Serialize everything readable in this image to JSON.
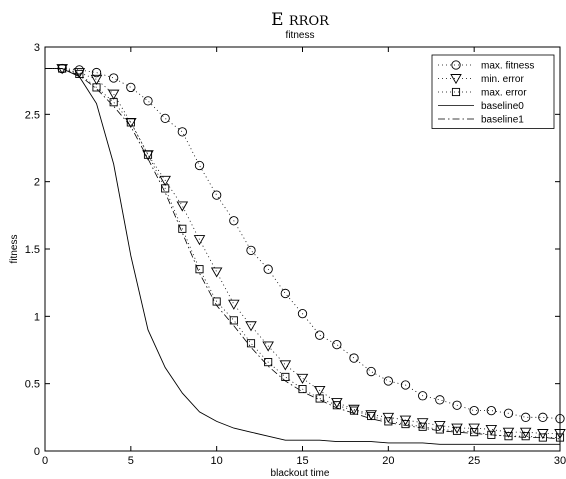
{
  "chart_data": {
    "type": "line",
    "title": "Error",
    "subtitle": "fitness",
    "xlabel": "blackout time",
    "ylabel": "fitness",
    "xlim": [
      0,
      30
    ],
    "ylim": [
      0,
      3
    ],
    "xticks": [
      "0",
      "5",
      "10",
      "15",
      "20",
      "25",
      "30"
    ],
    "yticks": [
      "0",
      "0.5",
      "1",
      "1.5",
      "2",
      "2.5",
      "3"
    ],
    "grid": false,
    "legend_position": "top-right",
    "x": [
      0,
      1,
      2,
      3,
      4,
      5,
      6,
      7,
      8,
      9,
      10,
      11,
      12,
      13,
      14,
      15,
      16,
      17,
      18,
      19,
      20,
      21,
      22,
      23,
      24,
      25,
      26,
      27,
      28,
      29,
      30
    ],
    "series": [
      {
        "name": "max. fitness",
        "line": "dotted",
        "marker": "circle",
        "values": [
          2.84,
          2.84,
          2.83,
          2.81,
          2.77,
          2.7,
          2.6,
          2.47,
          2.37,
          2.12,
          1.9,
          1.71,
          1.49,
          1.35,
          1.17,
          1.02,
          0.86,
          0.79,
          0.69,
          0.59,
          0.52,
          0.49,
          0.41,
          0.38,
          0.34,
          0.3,
          0.3,
          0.28,
          0.25,
          0.25,
          0.24
        ]
      },
      {
        "name": "min. error",
        "line": "dotted",
        "marker": "triangle-down",
        "values": [
          2.84,
          2.84,
          2.81,
          2.76,
          2.65,
          2.44,
          2.2,
          2.01,
          1.82,
          1.57,
          1.33,
          1.09,
          0.93,
          0.78,
          0.64,
          0.54,
          0.45,
          0.36,
          0.31,
          0.27,
          0.25,
          0.23,
          0.21,
          0.19,
          0.17,
          0.17,
          0.16,
          0.14,
          0.14,
          0.13,
          0.13
        ]
      },
      {
        "name": "max. error",
        "line": "dotted",
        "marker": "square",
        "values": [
          2.84,
          2.84,
          2.8,
          2.7,
          2.59,
          2.44,
          2.2,
          1.95,
          1.65,
          1.35,
          1.11,
          0.97,
          0.8,
          0.66,
          0.55,
          0.46,
          0.39,
          0.34,
          0.3,
          0.26,
          0.22,
          0.2,
          0.18,
          0.16,
          0.15,
          0.14,
          0.12,
          0.11,
          0.11,
          0.1,
          0.1
        ]
      },
      {
        "name": "baseline0",
        "line": "solid",
        "marker": "none",
        "values": [
          2.84,
          2.84,
          2.78,
          2.58,
          2.13,
          1.45,
          0.9,
          0.62,
          0.43,
          0.29,
          0.22,
          0.17,
          0.14,
          0.11,
          0.08,
          0.08,
          0.08,
          0.07,
          0.07,
          0.07,
          0.06,
          0.06,
          0.06,
          0.05,
          0.05,
          0.05,
          0.05,
          0.05,
          0.05,
          0.05,
          0.05
        ]
      },
      {
        "name": "baseline1",
        "line": "dashdot",
        "marker": "none",
        "values": [
          2.84,
          2.84,
          2.79,
          2.69,
          2.56,
          2.41,
          2.17,
          1.92,
          1.62,
          1.32,
          1.08,
          0.93,
          0.77,
          0.63,
          0.52,
          0.44,
          0.38,
          0.32,
          0.28,
          0.24,
          0.21,
          0.19,
          0.17,
          0.15,
          0.14,
          0.13,
          0.12,
          0.11,
          0.1,
          0.1,
          0.09
        ]
      }
    ]
  }
}
